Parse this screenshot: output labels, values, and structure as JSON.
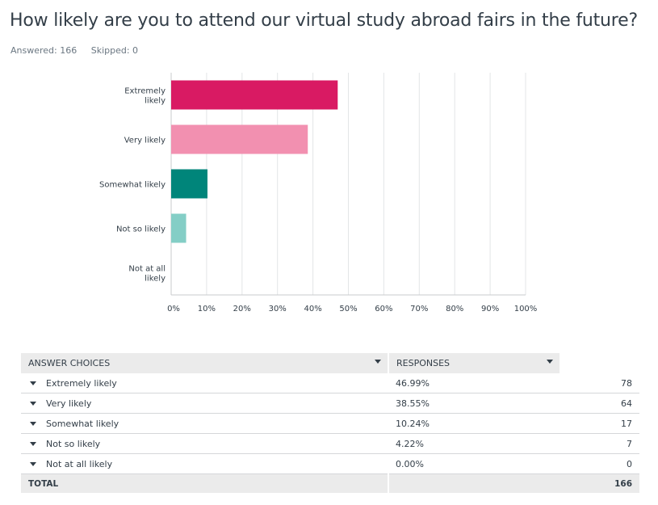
{
  "question": {
    "title": "How likely are you to attend our virtual study abroad fairs in the future?",
    "answered": "Answered: 166",
    "skipped": "Skipped: 0"
  },
  "chart_data": {
    "type": "bar",
    "orientation": "horizontal",
    "categories": [
      [
        "Extremely",
        "likely"
      ],
      [
        "Very likely"
      ],
      [
        "Somewhat likely"
      ],
      [
        "Not so likely"
      ],
      [
        "Not at all",
        "likely"
      ]
    ],
    "values": [
      46.99,
      38.55,
      10.24,
      4.22,
      0.0
    ],
    "colors": [
      "#d91a63",
      "#f290b0",
      "#00857a",
      "#84cec6",
      "#cccccc"
    ],
    "xlim": [
      0,
      100
    ],
    "xticks": [
      "0%",
      "10%",
      "20%",
      "30%",
      "40%",
      "50%",
      "60%",
      "70%",
      "80%",
      "90%",
      "100%"
    ],
    "grid": true,
    "title": "",
    "xlabel": "",
    "ylabel": ""
  },
  "table": {
    "headers": [
      "ANSWER CHOICES",
      "RESPONSES"
    ],
    "rows": [
      {
        "choice": "Extremely likely",
        "percent": "46.99%",
        "count": "78"
      },
      {
        "choice": "Very likely",
        "percent": "38.55%",
        "count": "64"
      },
      {
        "choice": "Somewhat likely",
        "percent": "10.24%",
        "count": "17"
      },
      {
        "choice": "Not so likely",
        "percent": "4.22%",
        "count": "7"
      },
      {
        "choice": "Not at all likely",
        "percent": "0.00%",
        "count": "0"
      }
    ],
    "total_label": "TOTAL",
    "total_value": "166"
  }
}
